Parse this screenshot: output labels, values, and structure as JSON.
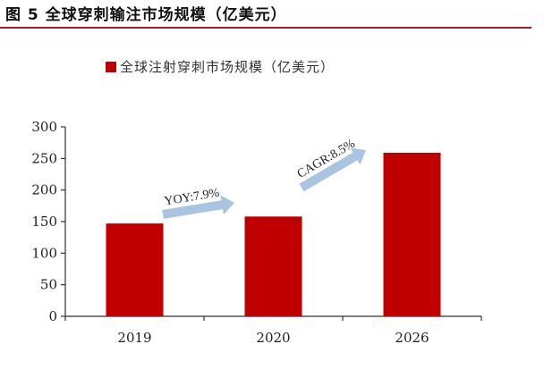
{
  "figure": {
    "title": "图 5 全球穿刺输注市场规模（亿美元）",
    "rule_color": "#b5172a"
  },
  "chart_data": {
    "type": "bar",
    "title": "全球穿刺输注市场规模（亿美元）",
    "categories": [
      "2019",
      "2020",
      "2026"
    ],
    "series": [
      {
        "name": "全球注射穿刺市场规模（亿美元）",
        "values": [
          147,
          158,
          259
        ],
        "color": "#c00000"
      }
    ],
    "xlabel": "",
    "ylabel": "",
    "ylim": [
      0,
      300
    ],
    "yticks": [
      "0",
      "50",
      "100",
      "150",
      "200",
      "250",
      "300"
    ],
    "grid": false,
    "legend_position": "top",
    "annotations": [
      {
        "text": "YOY:7.9%",
        "from": "2019",
        "to": "2020",
        "arrow_color": "#a9c4e0"
      },
      {
        "text": "CAGR:8.5%",
        "from": "2020",
        "to": "2026",
        "arrow_color": "#a9c4e0"
      }
    ]
  }
}
